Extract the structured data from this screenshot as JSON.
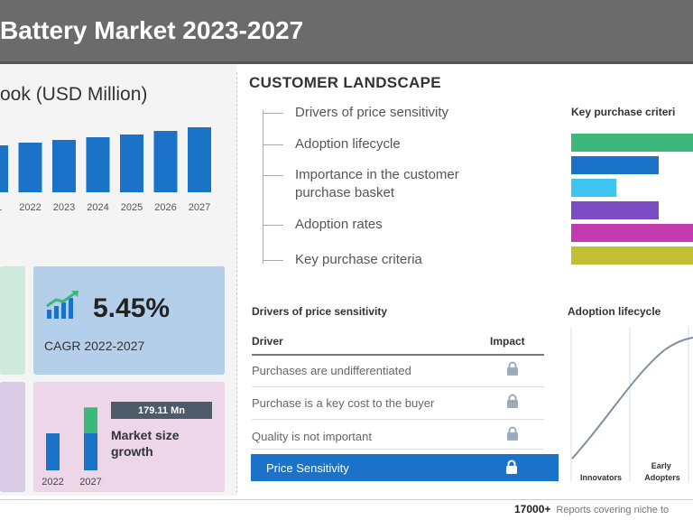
{
  "header": {
    "title": "Battery Market 2023-2027"
  },
  "outlook": {
    "title": "ook (USD Million)",
    "chart_data": {
      "type": "bar",
      "categories": [
        "21",
        "2022",
        "2023",
        "2024",
        "2025",
        "2026",
        "2027"
      ],
      "values": [
        52,
        55,
        58,
        61,
        64,
        68,
        72
      ],
      "color": "#1a73c9"
    }
  },
  "cagr": {
    "value": "5.45%",
    "label": "CAGR 2022-2027",
    "icon": "chart-growth-icon"
  },
  "growth": {
    "badge": "179.11 Mn",
    "label": "Market size growth",
    "chart_data": {
      "type": "bar",
      "categories": [
        "2022",
        "2027"
      ],
      "base": [
        1,
        1
      ],
      "increment": [
        0,
        0.7
      ],
      "colors": {
        "base": "#1a73c9",
        "increment": "#3bb87a"
      }
    }
  },
  "customer_landscape": {
    "title": "CUSTOMER LANDSCAPE",
    "items": [
      "Drivers of price sensitivity",
      "Adoption lifecycle",
      "Importance in the customer purchase basket",
      "Adoption rates",
      "Key purchase criteria"
    ]
  },
  "key_purchase": {
    "title": "Key purchase criteri",
    "bars": [
      {
        "value": 1.0,
        "color": "#3bb87a"
      },
      {
        "value": 0.72,
        "color": "#1a73c9"
      },
      {
        "value": 0.37,
        "color": "#3ec4f0"
      },
      {
        "value": 0.72,
        "color": "#7b4bc4"
      },
      {
        "value": 1.0,
        "color": "#c43bb0"
      },
      {
        "value": 1.0,
        "color": "#c2c032"
      }
    ]
  },
  "drivers": {
    "title": "Drivers of price sensitivity",
    "col_driver": "Driver",
    "col_impact": "Impact",
    "rows": [
      "Purchases are undifferentiated",
      "Purchase is a key cost to the buyer",
      "Quality is not important"
    ],
    "highlight": "Price Sensitivity"
  },
  "adoption": {
    "title": "Adoption lifecycle",
    "labels": [
      "Innovators",
      "Early Adopters"
    ]
  },
  "footer": {
    "count": "17000+",
    "text": "Reports covering niche to"
  }
}
